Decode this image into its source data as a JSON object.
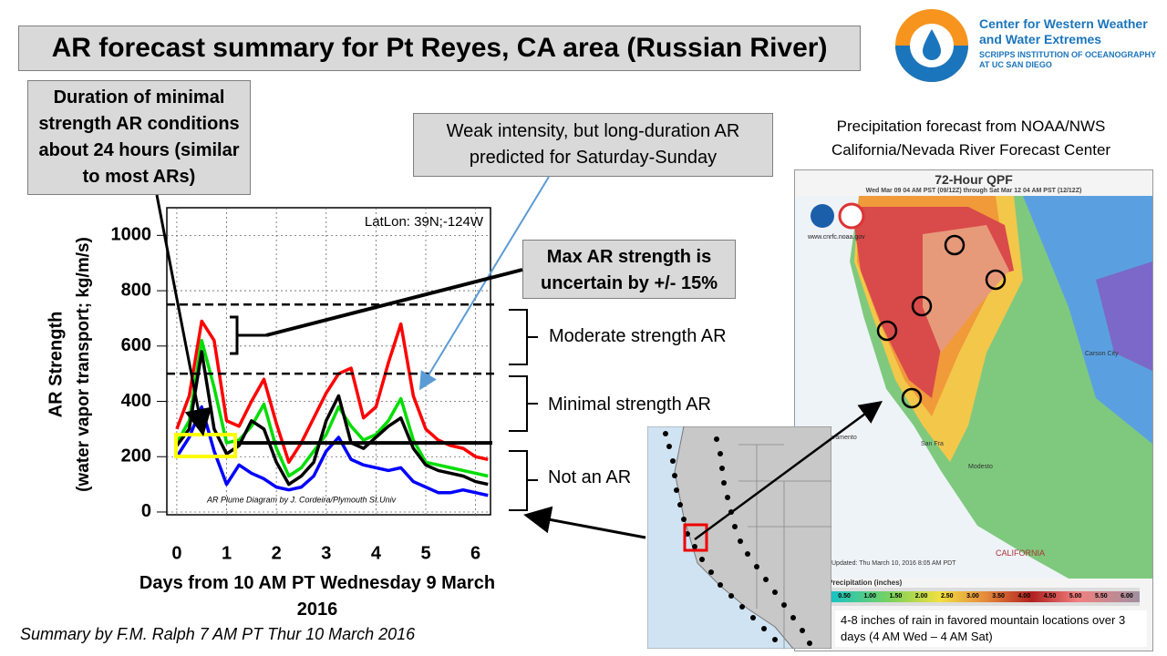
{
  "title": "AR forecast summary for Pt Reyes, CA area (Russian River)",
  "logo": {
    "name": "Center for Western Weather and Water Extremes",
    "institution": "SCRIPPS INSTITUTION OF OCEANOGRAPHY AT UC SAN DIEGO"
  },
  "callouts": [
    "Duration of minimal strength AR conditions about 24 hours (similar to most ARs)",
    "Weak intensity, but long-duration AR predicted for Saturday-Sunday",
    "Max AR strength is uncertain by +/- 15%"
  ],
  "brackets": [
    "Moderate strength AR",
    "Minimal strength AR",
    "Not an AR"
  ],
  "qpf": {
    "caption": "Precipitation forecast from NOAA/NWS California/Nevada River Forecast Center",
    "title": "72-Hour QPF",
    "subtitle": "Wed Mar 09 04 AM PST (09/12Z) through Sat Mar 12 04 AM PST (12/12Z)",
    "source": "www.cnrfc.noaa.gov",
    "updated": "Updated: Thu March 10, 2016 8:05 AM PDT",
    "legend_title": "Precipitation (inches)",
    "legend_labels": [
      "0.50",
      "1.00",
      "1.50",
      "2.00",
      "2.50",
      "3.00",
      "3.50",
      "4.00",
      "4.50",
      "5.00",
      "5.50",
      "6.00"
    ],
    "places": [
      "Sacramento",
      "San Fra",
      "Modesto",
      "Carson City",
      "CALIFORNIA"
    ],
    "note": "4-8 inches of rain in favored mountain locations over 3 days (4 AM Wed – 4 AM Sat)"
  },
  "footer": "Summary by F.M. Ralph 7 AM PT Thur 10 March 2016",
  "chart_data": {
    "type": "line",
    "xlabel": "Days from 10 AM PT Wednesday 9 March 2016",
    "ylabel": [
      "AR Strength",
      "(water vapor transport; kg/m/s)"
    ],
    "annotations": [
      "LatLon: 39N;-124W",
      "AR Plume Diagram by J. Cordeira/Plymouth  St.Univ"
    ],
    "x": [
      0,
      0.25,
      0.5,
      0.75,
      1,
      1.25,
      1.5,
      1.75,
      2,
      2.25,
      2.5,
      2.75,
      3,
      3.25,
      3.5,
      3.75,
      4,
      4.25,
      4.5,
      4.75,
      5,
      5.25,
      5.5,
      5.75,
      6,
      6.25
    ],
    "series": [
      {
        "color": "#ff0000",
        "values": [
          300,
          420,
          690,
          620,
          330,
          310,
          400,
          480,
          320,
          180,
          250,
          340,
          430,
          500,
          520,
          340,
          380,
          540,
          680,
          420,
          300,
          260,
          240,
          230,
          200,
          190
        ]
      },
      {
        "color": "#0000ff",
        "values": [
          200,
          270,
          380,
          220,
          100,
          170,
          140,
          120,
          90,
          80,
          90,
          130,
          220,
          270,
          190,
          170,
          160,
          150,
          160,
          110,
          90,
          70,
          70,
          80,
          70,
          60
        ]
      },
      {
        "color": "#00dd00",
        "values": [
          250,
          330,
          620,
          450,
          250,
          260,
          310,
          390,
          230,
          130,
          160,
          220,
          280,
          380,
          310,
          260,
          280,
          330,
          410,
          260,
          180,
          170,
          160,
          150,
          140,
          130
        ]
      },
      {
        "color": "#000000",
        "values": [
          240,
          300,
          580,
          300,
          210,
          240,
          330,
          300,
          180,
          100,
          130,
          180,
          330,
          420,
          250,
          230,
          270,
          310,
          340,
          230,
          170,
          150,
          140,
          130,
          110,
          100
        ]
      }
    ],
    "reference_lines": [
      750,
      500,
      250
    ],
    "reference_styles": [
      "dashed",
      "dashed",
      "solid"
    ],
    "xlim": [
      -0.2,
      6.3
    ],
    "xticks": [
      0,
      1,
      2,
      3,
      4,
      5,
      6
    ],
    "ylim": [
      -10,
      1100
    ],
    "yticks": [
      0,
      200,
      400,
      600,
      800,
      1000
    ],
    "grid": true
  }
}
